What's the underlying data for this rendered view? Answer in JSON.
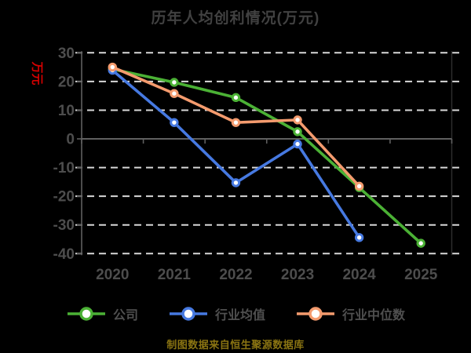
{
  "source_note": "制图数据来自恒生聚源数据库",
  "colors": {
    "background": "#000000",
    "title_text": "#414141",
    "tick_text": "#4d4d4d",
    "legend_text": "#4f4f4f",
    "ylabel_text": "#d40000",
    "gridline": "#d8d8d8",
    "axis_line": "#5f5f5f",
    "right_spine": "#2f2f2f",
    "marker_fill": "#ffffff",
    "source_text": "#8a7412"
  },
  "chart_data": {
    "type": "line",
    "title": "历年人均创利情况(万元)",
    "xlabel": "",
    "ylabel": "万元",
    "categories": [
      "2020",
      "2021",
      "2022",
      "2023",
      "2024",
      "2025"
    ],
    "ylim": [
      -40,
      30
    ],
    "yticks": [
      30,
      20,
      10,
      0,
      -10,
      -20,
      -30,
      -40
    ],
    "grid": "horizontal-dashed",
    "legend_position": "bottom",
    "series": [
      {
        "name": "公司",
        "color": "#4bb135",
        "values": [
          24.3,
          19.7,
          14.4,
          2.5,
          -17.0,
          -36.4
        ]
      },
      {
        "name": "行业均值",
        "color": "#4679e1",
        "values": [
          23.9,
          5.7,
          -15.3,
          -1.8,
          -34.4,
          null
        ]
      },
      {
        "name": "行业中位数",
        "color": "#f49b6e",
        "values": [
          25.0,
          15.8,
          5.7,
          6.6,
          -16.5,
          null
        ]
      }
    ]
  }
}
